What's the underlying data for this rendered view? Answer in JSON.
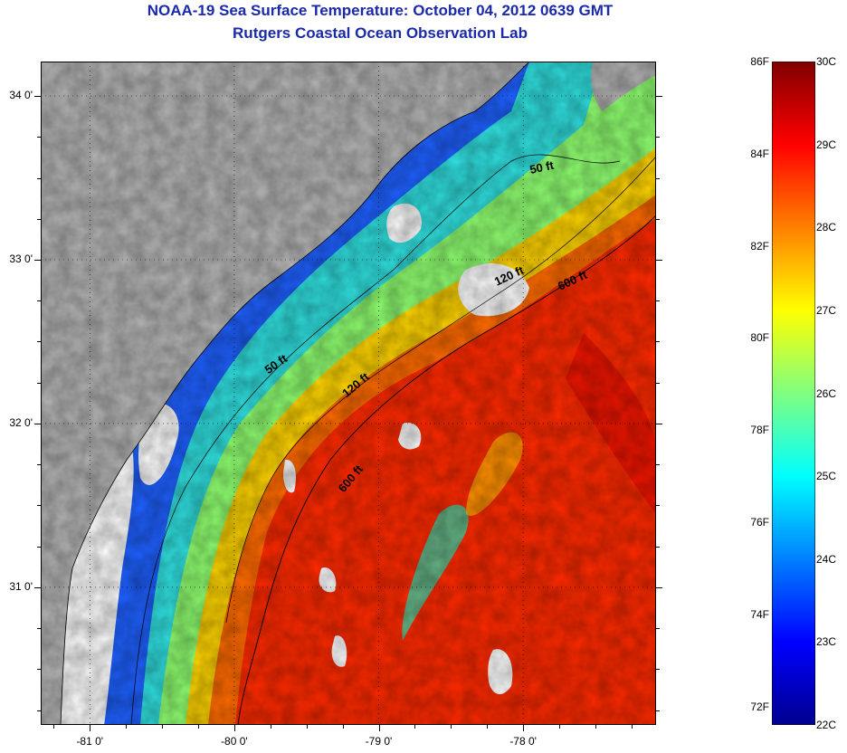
{
  "title": {
    "line1": "NOAA-19 Sea Surface Temperature:  October 04, 2012 0639 GMT",
    "line2": "Rutgers Coastal Ocean Observation Lab"
  },
  "map": {
    "lon_range": [
      -81.34,
      -77.08
    ],
    "lat_range": [
      30.16,
      34.21
    ],
    "lat_ticks": [
      {
        "v": 34.0,
        "label": "34 0'"
      },
      {
        "v": 33.0,
        "label": "33 0'"
      },
      {
        "v": 32.0,
        "label": "32 0'"
      },
      {
        "v": 31.0,
        "label": "31 0'"
      }
    ],
    "lon_ticks": [
      {
        "v": -81.0,
        "label": "-81 0'"
      },
      {
        "v": -80.0,
        "label": "-80 0'"
      },
      {
        "v": -79.0,
        "label": "-79 0'"
      },
      {
        "v": -78.0,
        "label": "-78 0'"
      }
    ],
    "contour_labels": [
      {
        "text": "50 ft",
        "name": "contour-label-50ft-north"
      },
      {
        "text": "120 ft",
        "name": "contour-label-120ft-north"
      },
      {
        "text": "600 ft",
        "name": "contour-label-600ft-north"
      },
      {
        "text": "50 ft",
        "name": "contour-label-50ft-south"
      },
      {
        "text": "120 ft",
        "name": "contour-label-120ft-south"
      },
      {
        "text": "600 ft",
        "name": "contour-label-600ft-south"
      }
    ],
    "colors": {
      "land": "#b4b4b4",
      "cloud": "#ffffff"
    }
  },
  "colorbar": {
    "range_c": [
      22,
      30
    ],
    "celsius_labels": [
      "30C",
      "29C",
      "28C",
      "27C",
      "26C",
      "25C",
      "24C",
      "23C",
      "22C"
    ],
    "fahrenheit_labels": [
      "86F",
      "84F",
      "82F",
      "80F",
      "78F",
      "76F",
      "74F",
      "72F"
    ],
    "colormap": [
      "#00008f",
      "#0000ff",
      "#0080ff",
      "#00ffff",
      "#80ff80",
      "#ffff00",
      "#ff8000",
      "#ff0000",
      "#800000"
    ]
  }
}
